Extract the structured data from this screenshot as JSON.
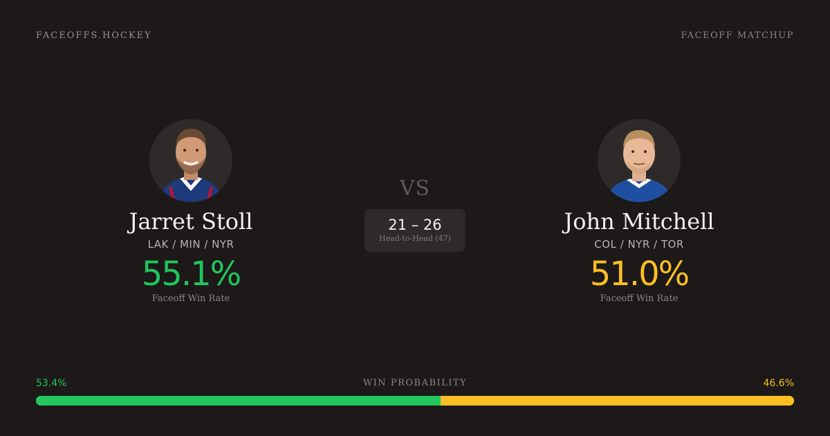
{
  "header": {
    "brand": "FACEOFFS.HOCKEY",
    "page_kind": "FACEOFF MATCHUP"
  },
  "players": [
    {
      "name": "Jarret Stoll",
      "teams": "LAK / MIN / NYR",
      "faceoff_rate": "55.1%",
      "rate_label": "Faceoff Win Rate",
      "color": "#22c55e"
    },
    {
      "name": "John Mitchell",
      "teams": "COL / NYR / TOR",
      "faceoff_rate": "51.0%",
      "rate_label": "Faceoff Win Rate",
      "color": "#fbbf24"
    }
  ],
  "versus": {
    "label": "VS",
    "head_to_head_score": "21 – 26",
    "head_to_head_label": "Head-to-Head (47)"
  },
  "win_probability": {
    "title": "WIN PROBABILITY",
    "left_label": "53.4%",
    "right_label": "46.6%",
    "left_fraction": 0.534,
    "right_fraction": 0.466
  },
  "colors": {
    "background": "#1c1918",
    "green": "#22c55e",
    "yellow": "#fbbf24"
  }
}
